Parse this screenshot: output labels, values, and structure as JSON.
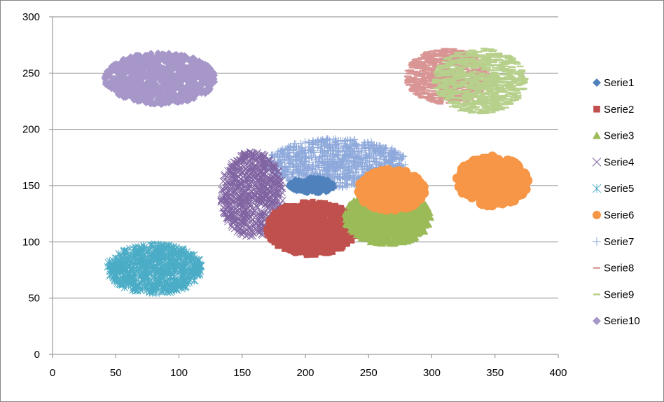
{
  "chart_data": {
    "type": "scatter",
    "xlim": [
      0,
      400
    ],
    "ylim": [
      0,
      300
    ],
    "x_ticks": [
      0,
      50,
      100,
      150,
      200,
      250,
      300,
      350,
      400
    ],
    "y_ticks": [
      0,
      50,
      100,
      150,
      200,
      250,
      300
    ],
    "grid": {
      "horizontal": true,
      "vertical": false
    },
    "legend": {
      "placement": "right"
    },
    "series": [
      {
        "name": "Serie1",
        "marker": "diamond",
        "color": "#4F81BD",
        "center": [
          205,
          150
        ],
        "spread": [
          18,
          7
        ],
        "count": 220,
        "wedge": [
          205,
          148,
          0,
          360
        ]
      },
      {
        "name": "Serie2",
        "marker": "square",
        "color": "#C0504D",
        "center": [
          205,
          112
        ],
        "spread": [
          36,
          24
        ],
        "count": 900
      },
      {
        "name": "Serie3",
        "marker": "triangle",
        "color": "#9BBB59",
        "center": [
          265,
          122
        ],
        "spread": [
          34,
          24
        ],
        "count": 900
      },
      {
        "name": "Serie4",
        "marker": "x",
        "color": "#8064A2",
        "center": [
          158,
          142
        ],
        "spread": [
          25,
          38
        ],
        "count": 700
      },
      {
        "name": "Serie5",
        "marker": "asterisk",
        "color": "#4BACC6",
        "center": [
          81,
          76
        ],
        "spread": [
          38,
          22
        ],
        "count": 700
      },
      {
        "name": "Serie6",
        "marker": "circle",
        "color": "#F79646",
        "center": [
          268,
          146
        ],
        "spread": [
          26,
          18
        ],
        "count": 350,
        "extra": {
          "center": [
            348,
            154
          ],
          "spread": [
            28,
            22
          ],
          "count": 260
        }
      },
      {
        "name": "Serie7",
        "marker": "plus",
        "color": "#8EA9DB",
        "center": [
          225,
          170
        ],
        "spread": [
          55,
          22
        ],
        "count": 1100
      },
      {
        "name": "Serie8",
        "marker": "dash",
        "color": "#D99594",
        "center": [
          312,
          247
        ],
        "spread": [
          32,
          25
        ],
        "count": 700
      },
      {
        "name": "Serie9",
        "marker": "dash",
        "color": "#B7D08C",
        "center": [
          338,
          243
        ],
        "spread": [
          36,
          29
        ],
        "count": 800
      },
      {
        "name": "Serie10",
        "marker": "diamond",
        "color": "#A797C9",
        "center": [
          85,
          245
        ],
        "spread": [
          44,
          23
        ],
        "count": 900
      }
    ]
  }
}
